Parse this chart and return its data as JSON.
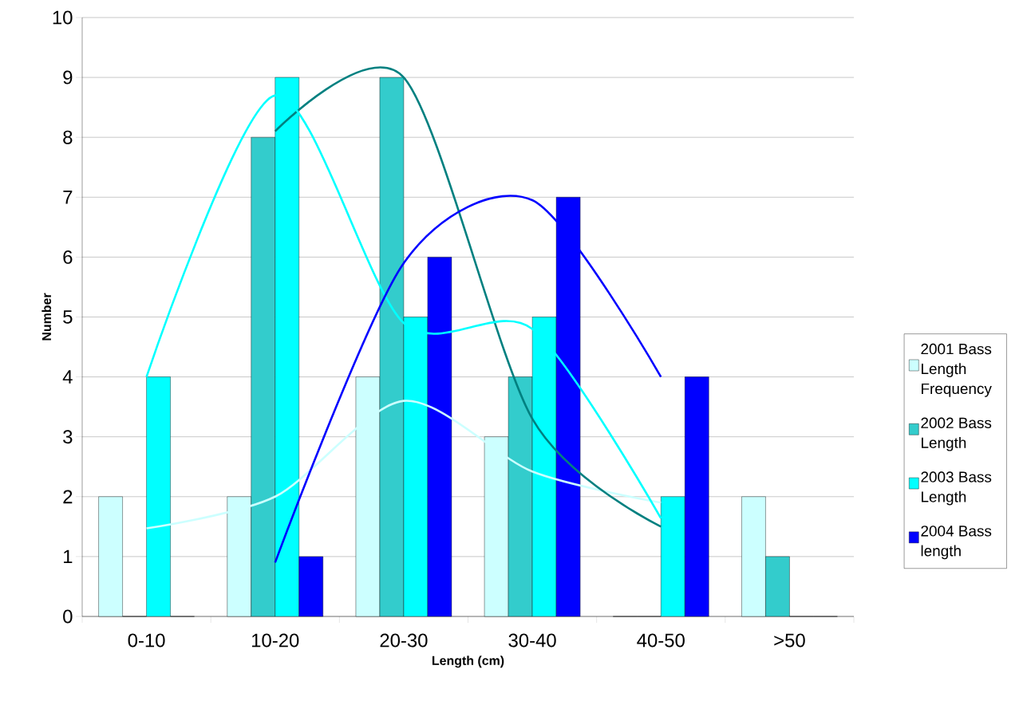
{
  "chart_data": {
    "type": "bar",
    "xlabel": "Length (cm)",
    "ylabel": "Number",
    "categories": [
      "0-10",
      "10-20",
      "20-30",
      "30-40",
      "40-50",
      ">50"
    ],
    "series": [
      {
        "name": "2001 Bass Length Frequency",
        "color": "#ccffff",
        "values": [
          2,
          2,
          4,
          3,
          0,
          2
        ]
      },
      {
        "name": "2002 Bass Length",
        "color": "#33cccc",
        "values": [
          0,
          8,
          9,
          4,
          0,
          1
        ]
      },
      {
        "name": "2003 Bass Length",
        "color": "#00ffff",
        "values": [
          4,
          9,
          5,
          5,
          2,
          0
        ]
      },
      {
        "name": "2004 Bass length",
        "color": "#0000ff",
        "values": [
          0,
          1,
          6,
          7,
          4,
          0
        ]
      },
      {
        "type": "line",
        "color": "#ccffff",
        "values": [
          1.47,
          2.0,
          3.6,
          2.42,
          1.9,
          null
        ]
      },
      {
        "type": "line",
        "color": "#008080",
        "values": [
          null,
          8.1,
          9.0,
          3.3,
          1.5,
          null
        ]
      },
      {
        "type": "line",
        "color": "#00ffff",
        "values": [
          4.0,
          8.7,
          4.9,
          4.8,
          1.64,
          null
        ]
      },
      {
        "type": "line",
        "color": "#0000ff",
        "values": [
          null,
          0.9,
          5.9,
          6.95,
          4.0,
          null
        ]
      }
    ],
    "ylim": [
      0,
      10
    ],
    "yticks": [
      0,
      1,
      2,
      3,
      4,
      5,
      6,
      7,
      8,
      9,
      10
    ],
    "grid": "y",
    "legend": "right"
  }
}
